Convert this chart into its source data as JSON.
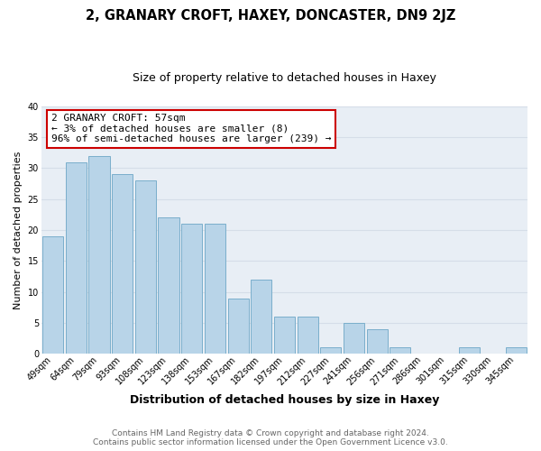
{
  "title": "2, GRANARY CROFT, HAXEY, DONCASTER, DN9 2JZ",
  "subtitle": "Size of property relative to detached houses in Haxey",
  "xlabel": "Distribution of detached houses by size in Haxey",
  "ylabel": "Number of detached properties",
  "footer_line1": "Contains HM Land Registry data © Crown copyright and database right 2024.",
  "footer_line2": "Contains public sector information licensed under the Open Government Licence v3.0.",
  "bar_labels": [
    "49sqm",
    "64sqm",
    "79sqm",
    "93sqm",
    "108sqm",
    "123sqm",
    "138sqm",
    "153sqm",
    "167sqm",
    "182sqm",
    "197sqm",
    "212sqm",
    "227sqm",
    "241sqm",
    "256sqm",
    "271sqm",
    "286sqm",
    "301sqm",
    "315sqm",
    "330sqm",
    "345sqm"
  ],
  "bar_values": [
    19,
    31,
    32,
    29,
    28,
    22,
    21,
    21,
    9,
    12,
    6,
    6,
    1,
    5,
    4,
    1,
    0,
    0,
    1,
    0,
    1
  ],
  "bar_color": "#b8d4e8",
  "bar_edge_color": "#7aaecb",
  "annotation_text": "2 GRANARY CROFT: 57sqm\n← 3% of detached houses are smaller (8)\n96% of semi-detached houses are larger (239) →",
  "annotation_box_edge": "#cc0000",
  "annotation_box_face": "#ffffff",
  "ylim": [
    0,
    40
  ],
  "yticks": [
    0,
    5,
    10,
    15,
    20,
    25,
    30,
    35,
    40
  ],
  "grid_color": "#d5dde8",
  "bg_color": "#ffffff",
  "plot_bg_color": "#e8eef5",
  "title_fontsize": 10.5,
  "subtitle_fontsize": 9,
  "ylabel_fontsize": 8,
  "xlabel_fontsize": 9,
  "tick_fontsize": 7,
  "annotation_fontsize": 8,
  "footer_fontsize": 6.5,
  "footer_color": "#666666"
}
